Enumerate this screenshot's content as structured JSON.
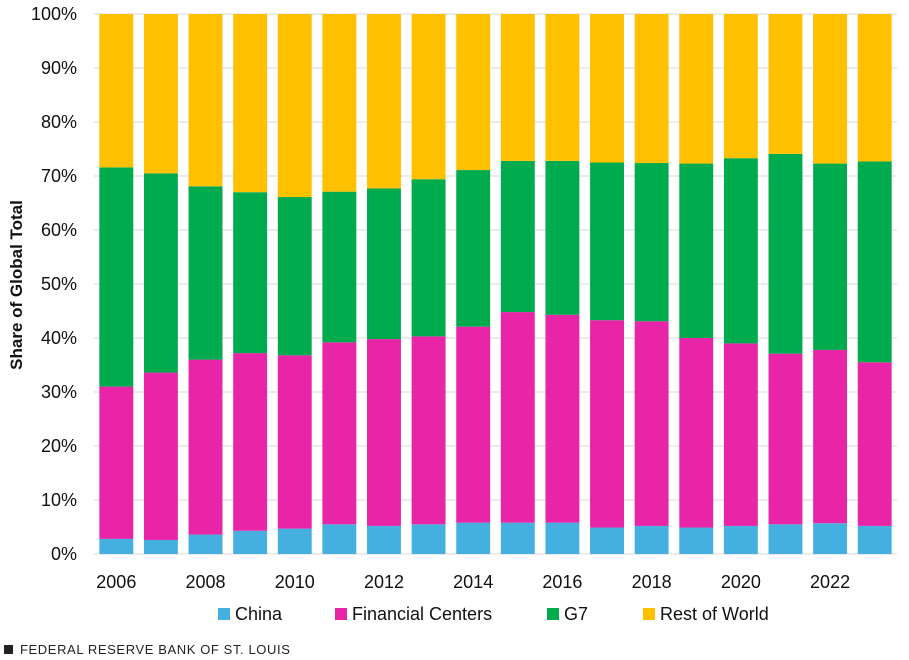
{
  "chart_data": {
    "type": "bar",
    "stacked": true,
    "ylabel": "Share of Global Total",
    "xlabel": "",
    "ylim": [
      0,
      100
    ],
    "y_tick_labels": [
      "0%",
      "10%",
      "20%",
      "30%",
      "40%",
      "50%",
      "60%",
      "70%",
      "80%",
      "90%",
      "100%"
    ],
    "categories": [
      "2006",
      "2007",
      "2008",
      "2009",
      "2010",
      "2011",
      "2012",
      "2013",
      "2014",
      "2015",
      "2016",
      "2017",
      "2018",
      "2019",
      "2020",
      "2021",
      "2022",
      "2023"
    ],
    "x_tick_labels": [
      "2006",
      "2008",
      "2010",
      "2012",
      "2014",
      "2016",
      "2018",
      "2020",
      "2022"
    ],
    "legend_position": "bottom",
    "series": [
      {
        "name": "China",
        "color": "#45B0E0",
        "values": [
          2.8,
          2.6,
          3.6,
          4.3,
          4.7,
          5.5,
          5.2,
          5.5,
          5.8,
          5.8,
          5.8,
          4.9,
          5.2,
          4.9,
          5.2,
          5.5,
          5.7,
          5.2
        ]
      },
      {
        "name": "Financial Centers",
        "color": "#E925A7",
        "values": [
          28.2,
          31.0,
          32.4,
          32.9,
          32.1,
          33.7,
          34.6,
          34.8,
          36.3,
          39.0,
          38.5,
          38.4,
          37.9,
          35.1,
          33.8,
          31.6,
          32.1,
          30.3
        ]
      },
      {
        "name": "G7",
        "color": "#00AB4E",
        "values": [
          40.6,
          36.9,
          32.1,
          29.8,
          29.3,
          27.9,
          27.9,
          29.1,
          29.0,
          28.0,
          28.5,
          29.2,
          29.3,
          32.3,
          34.3,
          37.0,
          34.5,
          37.2
        ]
      },
      {
        "name": "Rest of World",
        "color": "#FFC000",
        "values": [
          28.4,
          29.5,
          31.9,
          33.0,
          33.9,
          32.9,
          32.3,
          30.6,
          28.9,
          27.2,
          27.2,
          27.5,
          27.6,
          27.7,
          26.7,
          25.9,
          27.7,
          27.3
        ]
      }
    ]
  },
  "footer": {
    "text": "FEDERAL RESERVE BANK OF ST. LOUIS"
  }
}
